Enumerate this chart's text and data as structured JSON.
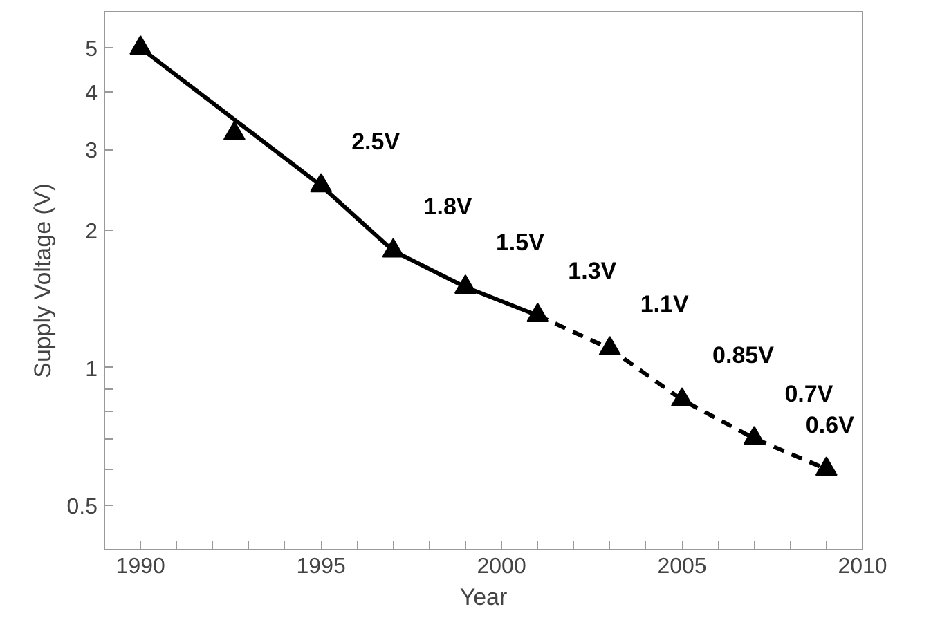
{
  "chart_data": {
    "type": "line",
    "xlabel": "Year",
    "ylabel": "Supply Voltage (V)",
    "log": "y",
    "xlim": [
      1989,
      2010
    ],
    "ylim": [
      0.4,
      6
    ],
    "xticks": [
      1990,
      {
        "value": 1991,
        "label": null
      },
      {
        "value": 1992,
        "label": null
      },
      {
        "value": 1993,
        "label": null
      },
      {
        "value": 1994,
        "label": null
      },
      1995,
      {
        "value": 1996,
        "label": null
      },
      {
        "value": 1997,
        "label": null
      },
      {
        "value": 1998,
        "label": null
      },
      {
        "value": 1999,
        "label": null
      },
      2000,
      {
        "value": 2001,
        "label": null
      },
      {
        "value": 2002,
        "label": null
      },
      {
        "value": 2003,
        "label": null
      },
      {
        "value": 2004,
        "label": null
      },
      2005,
      {
        "value": 2006,
        "label": null
      },
      {
        "value": 2007,
        "label": null
      },
      {
        "value": 2008,
        "label": null
      },
      {
        "value": 2009,
        "label": null
      },
      2010
    ],
    "yticks": [
      0.5,
      {
        "value": 0.6,
        "label": null
      },
      {
        "value": 0.7,
        "label": null
      },
      {
        "value": 0.8,
        "label": null
      },
      {
        "value": 0.9,
        "label": null
      },
      1,
      2,
      3,
      4,
      5
    ],
    "grid": false,
    "series": [
      {
        "color": "#000000",
        "line_style": "solid",
        "marker": "none",
        "x": [
          1990,
          1995,
          1997,
          1999,
          2001
        ],
        "values": [
          5,
          2.5,
          1.8,
          1.5,
          1.3
        ]
      },
      {
        "color": "#000000",
        "line_style": "dashed",
        "marker": "none",
        "x": [
          2001,
          2003,
          2005,
          2007,
          2009
        ],
        "values": [
          1.3,
          1.1,
          0.85,
          0.7,
          0.6
        ]
      },
      {
        "type": "scatter",
        "color": "#000000",
        "marker": "triangle",
        "x": [
          1990,
          1992.6,
          1995,
          1997,
          1999,
          2001,
          2003,
          2005,
          2007,
          2009
        ],
        "values": [
          5,
          3.25,
          2.5,
          1.8,
          1.5,
          1.3,
          1.1,
          0.85,
          0.7,
          0.6
        ]
      }
    ],
    "annotations": [
      {
        "text": "2.5V",
        "x": 1995,
        "y": 2.5
      },
      {
        "text": "1.8V",
        "x": 1997,
        "y": 1.8
      },
      {
        "text": "1.5V",
        "x": 1999,
        "y": 1.5
      },
      {
        "text": "1.3V",
        "x": 2001,
        "y": 1.3
      },
      {
        "text": "1.1V",
        "x": 2003,
        "y": 1.1
      },
      {
        "text": "0.85V",
        "x": 2005,
        "y": 0.85
      },
      {
        "text": "0.7V",
        "x": 2007,
        "y": 0.7
      },
      {
        "text": "0.6V",
        "x": 2009,
        "y": 0.6
      }
    ]
  }
}
